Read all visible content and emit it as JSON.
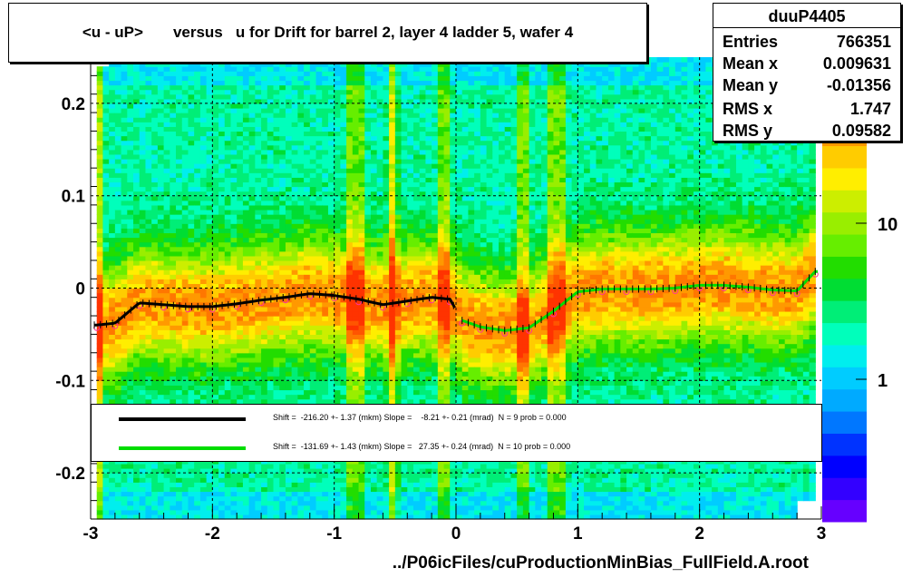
{
  "title": "<u - uP>       versus   u for Drift for barrel 2, layer 4 ladder 5, wafer 4",
  "stats": {
    "name": "duuP4405",
    "rows": [
      {
        "label": "Entries",
        "value": "766351"
      },
      {
        "label": "Mean x",
        "value": "0.009631"
      },
      {
        "label": "Mean y",
        "value": "-0.01356"
      },
      {
        "label": "RMS x",
        "value": "1.747"
      },
      {
        "label": "RMS y",
        "value": "0.09582"
      }
    ]
  },
  "legend": [
    {
      "color": "#000000",
      "text": "Shift =  -216.20 +- 1.37 (mkm) Slope =    -8.21 +- 0.21 (mrad)  N = 9 prob = 0.000"
    },
    {
      "color": "#00dd00",
      "text": "Shift =  -131.69 +- 1.43 (mkm) Slope =   27.35 +- 0.24 (mrad)  N = 10 prob = 0.000"
    }
  ],
  "xlabel": "../P06icFiles/cuProductionMinBias_FullField.A.root",
  "colors": {
    "black_fit": "#000000",
    "green_fit": "#00dd00",
    "markers": "#ff3399"
  },
  "chart_data": {
    "type": "heatmap",
    "title": "<u - uP>       versus   u for Drift for barrel 2, layer 4 ladder 5, wafer 4",
    "xlim": [
      -3,
      3
    ],
    "ylim": [
      -0.25,
      0.25
    ],
    "x_ticks": [
      "-3",
      "-2",
      "-1",
      "0",
      "1",
      "2",
      "3"
    ],
    "y_ticks": [
      "-0.2",
      "-0.1",
      "0",
      "0.1",
      "0.2"
    ],
    "z_scale": "log",
    "z_ticks": [
      "1",
      "10"
    ],
    "grid": true,
    "profile_points": {
      "x": [
        -2.95,
        -2.8,
        -2.6,
        -2.4,
        -2.2,
        -2.0,
        -1.8,
        -1.6,
        -1.4,
        -1.2,
        -1.0,
        -0.8,
        -0.6,
        -0.4,
        -0.2,
        -0.05,
        0.05,
        0.2,
        0.4,
        0.6,
        0.8,
        1.0,
        1.2,
        1.4,
        1.6,
        1.8,
        2.0,
        2.2,
        2.4,
        2.6,
        2.8,
        2.95
      ],
      "y": [
        -0.04,
        -0.038,
        -0.016,
        -0.018,
        -0.02,
        -0.02,
        -0.017,
        -0.013,
        -0.01,
        -0.006,
        -0.008,
        -0.012,
        -0.018,
        -0.014,
        -0.01,
        -0.012,
        -0.035,
        -0.042,
        -0.046,
        -0.043,
        -0.025,
        -0.004,
        -0.001,
        -0.001,
        -0.001,
        0.0,
        0.003,
        0.003,
        0.001,
        -0.002,
        -0.003,
        0.018
      ]
    },
    "fit_lines": [
      {
        "color": "#000000",
        "x_range": [
          -2.97,
          0.0
        ]
      },
      {
        "color": "#00dd00",
        "x_range": [
          0.05,
          2.97
        ]
      }
    ],
    "vertical_hot_bands": [
      -0.85,
      -0.8,
      -0.52,
      -0.1,
      0.55,
      0.8,
      0.85
    ]
  }
}
